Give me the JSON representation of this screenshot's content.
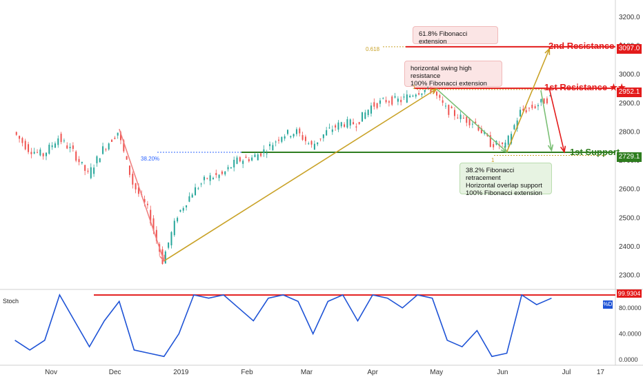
{
  "chart_data": {
    "type": "line",
    "title": "",
    "price_axis": {
      "ticks": [
        2300,
        2400,
        2500,
        2600,
        2700,
        2800,
        2900,
        3000,
        3100,
        3200
      ],
      "labels": [
        "2300.0",
        "2400.0",
        "2500.0",
        "2600.0",
        "2700.0",
        "2800.0",
        "2900.0",
        "3000.0",
        "3100.0",
        "3200.0"
      ],
      "ylim": [
        2270,
        3260
      ]
    },
    "time_axis": {
      "labels": [
        "Nov",
        "Dec",
        "2019",
        "Feb",
        "Mar",
        "Apr",
        "May",
        "Jun",
        "Jul",
        "17"
      ]
    },
    "price_series": [
      [
        "2018-10-15",
        2800
      ],
      [
        "2018-10-22",
        2740
      ],
      [
        "2018-10-29",
        2720
      ],
      [
        "2018-11-05",
        2780
      ],
      [
        "2018-11-12",
        2730
      ],
      [
        "2018-11-19",
        2650
      ],
      [
        "2018-11-26",
        2740
      ],
      [
        "2018-12-03",
        2800
      ],
      [
        "2018-12-10",
        2620
      ],
      [
        "2018-12-17",
        2530
      ],
      [
        "2018-12-24",
        2350
      ],
      [
        "2018-12-31",
        2510
      ],
      [
        "2019-01-07",
        2590
      ],
      [
        "2019-01-14",
        2640
      ],
      [
        "2019-01-21",
        2650
      ],
      [
        "2019-01-28",
        2700
      ],
      [
        "2019-02-04",
        2710
      ],
      [
        "2019-02-11",
        2740
      ],
      [
        "2019-02-18",
        2790
      ],
      [
        "2019-02-25",
        2800
      ],
      [
        "2019-03-04",
        2750
      ],
      [
        "2019-03-11",
        2800
      ],
      [
        "2019-03-18",
        2830
      ],
      [
        "2019-03-25",
        2830
      ],
      [
        "2019-04-01",
        2890
      ],
      [
        "2019-04-08",
        2910
      ],
      [
        "2019-04-15",
        2910
      ],
      [
        "2019-04-22",
        2940
      ],
      [
        "2019-04-29",
        2950
      ],
      [
        "2019-05-06",
        2880
      ],
      [
        "2019-05-13",
        2850
      ],
      [
        "2019-05-20",
        2830
      ],
      [
        "2019-05-27",
        2760
      ],
      [
        "2019-06-03",
        2750
      ],
      [
        "2019-06-10",
        2870
      ],
      [
        "2019-06-17",
        2890
      ],
      [
        "2019-06-24",
        2920
      ]
    ],
    "stochastic": {
      "name": "Stoch",
      "axis_ticks": [
        "0.0000",
        "40.0000",
        "80.0000"
      ],
      "last_value": "99.9304",
      "badge": "%D",
      "values": [
        [
          "2018-10-15",
          30
        ],
        [
          "2018-10-22",
          15
        ],
        [
          "2018-10-29",
          30
        ],
        [
          "2018-11-05",
          100
        ],
        [
          "2018-11-12",
          60
        ],
        [
          "2018-11-19",
          20
        ],
        [
          "2018-11-26",
          60
        ],
        [
          "2018-12-03",
          90
        ],
        [
          "2018-12-10",
          15
        ],
        [
          "2018-12-17",
          10
        ],
        [
          "2018-12-24",
          5
        ],
        [
          "2018-12-31",
          40
        ],
        [
          "2019-01-07",
          100
        ],
        [
          "2019-01-14",
          95
        ],
        [
          "2019-01-21",
          100
        ],
        [
          "2019-01-28",
          80
        ],
        [
          "2019-02-04",
          60
        ],
        [
          "2019-02-11",
          95
        ],
        [
          "2019-02-18",
          100
        ],
        [
          "2019-02-25",
          90
        ],
        [
          "2019-03-04",
          40
        ],
        [
          "2019-03-11",
          90
        ],
        [
          "2019-03-18",
          100
        ],
        [
          "2019-03-25",
          60
        ],
        [
          "2019-04-01",
          100
        ],
        [
          "2019-04-08",
          95
        ],
        [
          "2019-04-15",
          80
        ],
        [
          "2019-04-22",
          100
        ],
        [
          "2019-04-29",
          95
        ],
        [
          "2019-05-06",
          30
        ],
        [
          "2019-05-13",
          20
        ],
        [
          "2019-05-20",
          45
        ],
        [
          "2019-05-27",
          5
        ],
        [
          "2019-06-03",
          10
        ],
        [
          "2019-06-10",
          100
        ],
        [
          "2019-06-17",
          85
        ],
        [
          "2019-06-24",
          95
        ]
      ]
    },
    "levels": {
      "resistance2": {
        "label": "2nd Resistance ★",
        "value": 3097.0,
        "tag": "3097.0",
        "color": "#e31b1b"
      },
      "resistance1": {
        "label": "1st Resistance ★★",
        "value": 2952.1,
        "tag": "2952.1",
        "color": "#e31b1b"
      },
      "support1": {
        "label": "1st Support",
        "value": 2729.1,
        "tag": "2729.1",
        "color": "#2e7d1f"
      }
    },
    "fib_labels": {
      "ext": "0.618",
      "ret": "38.20%",
      "one_a": "1",
      "one_b": "1"
    },
    "annotations": {
      "fib_ext_box": "61.8% Fibonacci extension",
      "swing_high_box": [
        "horizontal swing high resistance",
        "100% Fibonacci extension"
      ],
      "support_box": [
        "38.2% Fibonacci retracement",
        "Horizontal overlap support",
        "100% Fibonacci extension"
      ]
    },
    "colors": {
      "price_up": "#26a69a",
      "price_down": "#ef5350",
      "stoch_line": "#1e53d6",
      "fib_line": "#c9a227",
      "red": "#e31b1b",
      "green": "#2e7d1f"
    },
    "grid": false
  }
}
